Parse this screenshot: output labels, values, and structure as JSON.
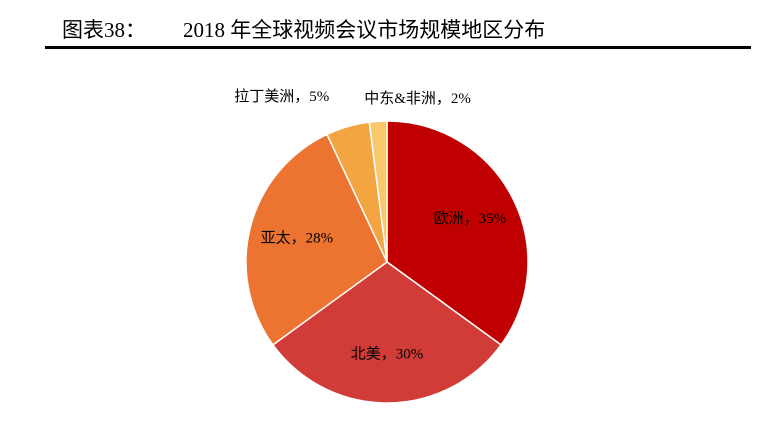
{
  "header": {
    "label": "图表38：",
    "title": "2018 年全球视频会议市场规模地区分布"
  },
  "chart_data": {
    "type": "pie",
    "values": [
      35,
      30,
      28,
      5,
      2
    ],
    "value_labels": [
      "欧洲，35%",
      "北美，30%",
      "亚太，28%",
      "拉丁美洲，5%",
      "中东&非洲，2%"
    ],
    "colors": [
      "#c00000",
      "#d13c38",
      "#ec7330",
      "#f2a541",
      "#f7c96b"
    ]
  }
}
